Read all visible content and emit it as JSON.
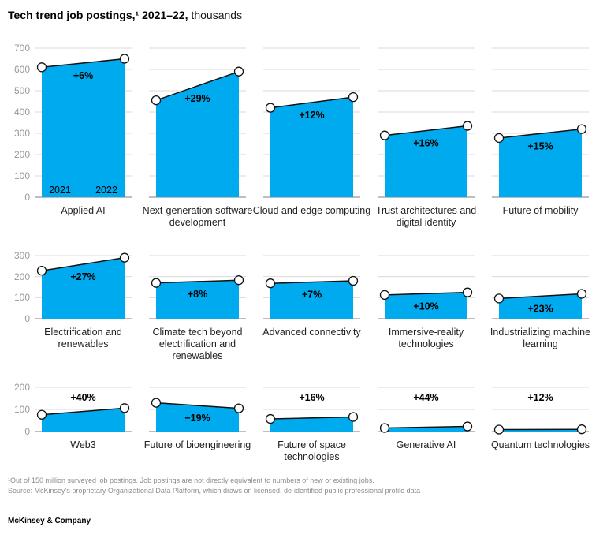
{
  "title": {
    "bold": "Tech trend job postings,¹ 2021–22,",
    "normal": "thousands"
  },
  "colors": {
    "area_blue": "#00aaef",
    "gridline": "#d9d9d9",
    "baseline": "#a8a8a8",
    "trend_line": "#111111",
    "marker_fill": "#ffffff",
    "marker_stroke": "#111111",
    "tick_text": "#999999",
    "category_text": "#1f1f1f",
    "change_text": "#000000"
  },
  "chart_data": {
    "type": "area",
    "x_categories": [
      "2021",
      "2022"
    ],
    "legend_position": "none",
    "grid": "horizontal",
    "rows": [
      {
        "ylim": [
          0,
          700
        ],
        "yticks": [
          0,
          100,
          200,
          300,
          400,
          500,
          600,
          700
        ],
        "charts": [
          {
            "label": "Applied AI",
            "values": [
              610,
              650
            ],
            "change": "+6%",
            "change_pos": "in",
            "show_year_labels": true
          },
          {
            "label": "Next-generation software development",
            "values": [
              455,
              590
            ],
            "change": "+29%",
            "change_pos": "in",
            "show_year_labels": false
          },
          {
            "label": "Cloud and edge computing",
            "values": [
              420,
              470
            ],
            "change": "+12%",
            "change_pos": "in",
            "show_year_labels": false
          },
          {
            "label": "Trust architectures and digital identity",
            "values": [
              290,
              335
            ],
            "change": "+16%",
            "change_pos": "in",
            "show_year_labels": false
          },
          {
            "label": "Future of mobility",
            "values": [
              278,
              320
            ],
            "change": "+15%",
            "change_pos": "in",
            "show_year_labels": false
          }
        ]
      },
      {
        "ylim": [
          0,
          300
        ],
        "yticks": [
          0,
          100,
          200,
          300
        ],
        "charts": [
          {
            "label": "Electrification and renewables",
            "values": [
              228,
              290
            ],
            "change": "+27%",
            "change_pos": "in",
            "show_year_labels": false
          },
          {
            "label": "Climate tech beyond electrification and renewables",
            "values": [
              170,
              183
            ],
            "change": "+8%",
            "change_pos": "in",
            "show_year_labels": false
          },
          {
            "label": "Advanced connectivity",
            "values": [
              168,
              180
            ],
            "change": "+7%",
            "change_pos": "in",
            "show_year_labels": false
          },
          {
            "label": "Immersive-reality technologies",
            "values": [
              113,
              125
            ],
            "change": "+10%",
            "change_pos": "in",
            "show_year_labels": false
          },
          {
            "label": "Industrializing machine learning",
            "values": [
              96,
              118
            ],
            "change": "+23%",
            "change_pos": "in",
            "show_year_labels": false
          }
        ]
      },
      {
        "ylim": [
          0,
          200
        ],
        "yticks": [
          0,
          100,
          200
        ],
        "charts": [
          {
            "label": "Web3",
            "values": [
              76,
              106
            ],
            "change": "+40%",
            "change_pos": "above",
            "show_year_labels": false
          },
          {
            "label": "Future of bioengineering",
            "values": [
              130,
              105
            ],
            "change": "−19%",
            "change_pos": "in",
            "show_year_labels": false
          },
          {
            "label": "Future of space technologies",
            "values": [
              57,
              66
            ],
            "change": "+16%",
            "change_pos": "above",
            "show_year_labels": false
          },
          {
            "label": "Generative AI",
            "values": [
              16,
              23
            ],
            "change": "+44%",
            "change_pos": "above",
            "show_year_labels": false
          },
          {
            "label": "Quantum technologies",
            "values": [
              9,
              10
            ],
            "change": "+12%",
            "change_pos": "above",
            "show_year_labels": false
          }
        ]
      }
    ]
  },
  "footnotes": [
    "¹Out of 150 million surveyed job postings. Job postings are not directly equivalent to numbers of new or existing jobs.",
    "Source: McKinsey’s proprietary Organizational Data Platform, which draws on licensed, de-identified public professional profile data"
  ],
  "brand": "McKinsey & Company"
}
